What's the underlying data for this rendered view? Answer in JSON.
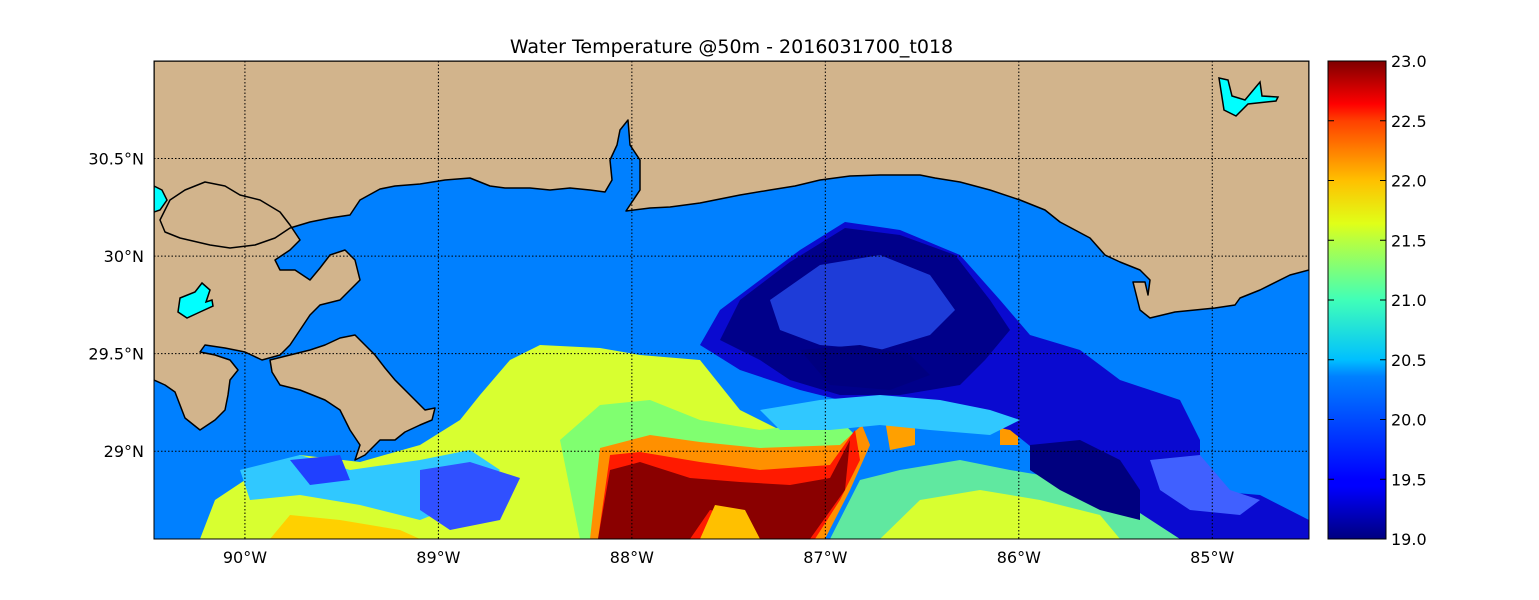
{
  "title": "Water Temperature @50m - 2016031700_t018",
  "map": {
    "lon_range": [
      -90.47,
      -84.5
    ],
    "lat_range": [
      28.55,
      31.0
    ],
    "lon_ticks": [
      {
        "value": -90,
        "label": "90°W"
      },
      {
        "value": -89,
        "label": "89°W"
      },
      {
        "value": -88,
        "label": "88°W"
      },
      {
        "value": -87,
        "label": "87°W"
      },
      {
        "value": -86,
        "label": "86°W"
      },
      {
        "value": -85,
        "label": "85°W"
      }
    ],
    "lat_ticks": [
      {
        "value": 30.5,
        "label": "30.5°N"
      },
      {
        "value": 30.0,
        "label": "30°N"
      },
      {
        "value": 29.5,
        "label": "29.5°N"
      },
      {
        "value": 29.0,
        "label": "29°N"
      }
    ],
    "gridlines": "dotted",
    "colors": {
      "land": "#d2b48c",
      "lake": "#00ffff",
      "no_data_fill": "#0080ff",
      "coastline": "#000000"
    }
  },
  "colorbar": {
    "colormap": "jet",
    "min": 19.0,
    "max": 23.0,
    "ticks": [
      "23.0",
      "22.5",
      "22.0",
      "21.5",
      "21.0",
      "20.5",
      "20.0",
      "19.5",
      "19.0"
    ]
  },
  "chart_data": {
    "type": "heatmap",
    "variable": "Water Temperature @50m",
    "units_range": [
      19.0,
      23.0
    ],
    "features": [
      {
        "region": "northern shelf (30.0-30.4N, 90.4-84.6W)",
        "value": 20.0
      },
      {
        "region": "cold eddy core (29.3-29.9N, 87.0-86.2W)",
        "value": 19.0
      },
      {
        "region": "cold eddy west arm (29.5-29.8N, 87.6-87.0W)",
        "value": 19.4
      },
      {
        "region": "warm core (28.6-29.0N, 88.1-87.0W)",
        "value": 23.0
      },
      {
        "region": "warm plume tip (29.1N, 86.9W)",
        "value": 22.6
      },
      {
        "region": "SE cold pocket (28.7-29.0N, 85.9-85.4W)",
        "value": 19.0
      },
      {
        "region": "west warm band (28.6-29.4N, 89.5-88.2W)",
        "value": 21.3
      },
      {
        "region": "south central (28.6-28.9N, 86.8-85.9W)",
        "value": 21.2
      }
    ]
  }
}
